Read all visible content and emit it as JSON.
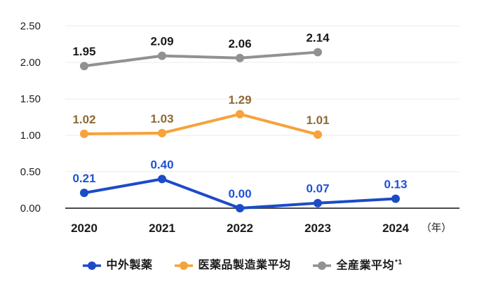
{
  "chart_data": {
    "type": "line",
    "categories": [
      "2020",
      "2021",
      "2022",
      "2023",
      "2024"
    ],
    "x_unit_label": "（年）",
    "ylim": [
      0,
      2.5
    ],
    "y_ticks": [
      "0.00",
      "0.50",
      "1.00",
      "1.50",
      "2.00",
      "2.50"
    ],
    "grid": true,
    "legend_position": "bottom",
    "axis_color": "#4a4a4a",
    "gridline_color": "#ebebeb",
    "tick_label_color": "#1f1f1f",
    "x_label_color": "#1a1a1a",
    "series": [
      {
        "key": "chugai",
        "name": "中外製薬",
        "color": "#1c4bc8",
        "label_color": "#1d52d6",
        "values": [
          0.21,
          0.4,
          0.0,
          0.07,
          0.13
        ],
        "point_labels": [
          "0.21",
          "0.40",
          "0.00",
          "0.07",
          "0.13"
        ]
      },
      {
        "key": "pharma-mfg-avg",
        "name": "医薬品製造業平均",
        "color": "#f7a23a",
        "label_color": "#8d6a32",
        "values": [
          1.02,
          1.03,
          1.29,
          1.01
        ],
        "point_labels": [
          "1.02",
          "1.03",
          "1.29",
          "1.01"
        ]
      },
      {
        "key": "all-industry-avg",
        "name": "全産業平均",
        "legend_suffix": "*1",
        "color": "#919191",
        "label_color": "#1a1a1a",
        "values": [
          1.95,
          2.09,
          2.06,
          2.14
        ],
        "point_labels": [
          "1.95",
          "2.09",
          "2.06",
          "2.14"
        ]
      }
    ]
  }
}
